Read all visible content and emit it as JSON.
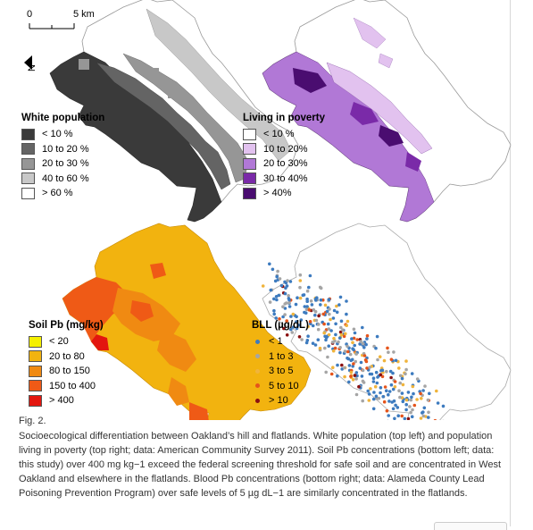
{
  "scale": {
    "zero": "0",
    "distance": "5 km"
  },
  "north": "N",
  "panels": {
    "white_population": {
      "title": "White population",
      "items": [
        {
          "label": "< 10 %",
          "color": "#3a3a3a"
        },
        {
          "label": "10 to 20 %",
          "color": "#646464"
        },
        {
          "label": "20 to 30 %",
          "color": "#969696"
        },
        {
          "label": "40 to 60 %",
          "color": "#c8c8c8"
        },
        {
          "label": "> 60 %",
          "color": "#ffffff"
        }
      ]
    },
    "poverty": {
      "title": "Living in poverty",
      "items": [
        {
          "label": "< 10 %",
          "color": "#ffffff"
        },
        {
          "label": "10 to 20%",
          "color": "#e2c2ef"
        },
        {
          "label": "20 to 30%",
          "color": "#b178d6"
        },
        {
          "label": "30 to 40%",
          "color": "#7a2aa8"
        },
        {
          "label": "> 40%",
          "color": "#4a0d70"
        }
      ]
    },
    "soil_pb": {
      "title": "Soil Pb (mg/kg)",
      "items": [
        {
          "label": "< 20",
          "color": "#f5f000"
        },
        {
          "label": "20 to 80",
          "color": "#f2b30f"
        },
        {
          "label": "80 to 150",
          "color": "#f08a12"
        },
        {
          "label": "150 to 400",
          "color": "#ef5a16"
        },
        {
          "label": "> 400",
          "color": "#e3160f"
        }
      ]
    },
    "bll": {
      "title": "BLL (µg/dL)",
      "items": [
        {
          "label": "< 1",
          "color": "#3d7bbf"
        },
        {
          "label": "1 to 3",
          "color": "#a5a5a5"
        },
        {
          "label": "3 to 5",
          "color": "#f0b43c"
        },
        {
          "label": "5 to 10",
          "color": "#e5541b"
        },
        {
          "label": "> 10",
          "color": "#8a1010"
        }
      ]
    }
  },
  "caption": {
    "label": "Fig. 2.",
    "text": "Socioecological differentiation between Oakland’s hill and flatlands. White population (top left) and population living in poverty (top right; data: American Community Survey 2011). Soil Pb concentrations (bottom left; data: this study) over 400 mg kg−1 exceed the federal screening threshold for safe soil and are concentrated in West Oakland and elsewhere in the flatlands. Blood Pb concentrations (bottom right; data: Alameda County Lead Poisoning Prevention Program) over safe levels of 5 µg dL−1 are similarly concentrated in the flatlands."
  }
}
